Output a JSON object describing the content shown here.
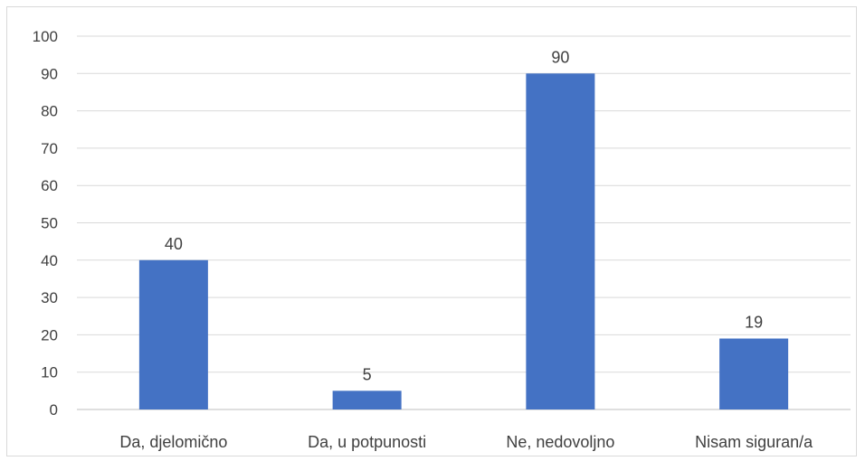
{
  "chart_data": {
    "type": "bar",
    "categories": [
      "Da, djelomično",
      "Da, u potpunosti",
      "Ne, nedovoljno",
      "Nisam siguran/a"
    ],
    "values": [
      40,
      5,
      90,
      19
    ],
    "data_labels": [
      "40",
      "5",
      "90",
      "19"
    ],
    "ylim": [
      0,
      100
    ],
    "yticks": [
      0,
      10,
      20,
      30,
      40,
      50,
      60,
      70,
      80,
      90,
      100
    ],
    "ytick_labels": [
      "0",
      "10",
      "20",
      "30",
      "40",
      "50",
      "60",
      "70",
      "80",
      "90",
      "100"
    ],
    "grid": true,
    "legend": "none",
    "bar_color": "#4472c4",
    "grid_color": "#d9d9d9",
    "text_color": "#404040"
  }
}
